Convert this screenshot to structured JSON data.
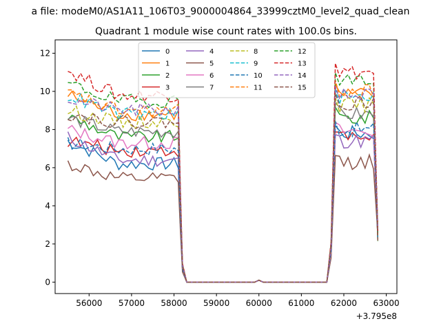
{
  "figure": {
    "suptitle": "a file: modeM0/AS1A11_106T03_9000004864_33999cztM0_level2_quad_clean"
  },
  "chart_data": {
    "type": "line",
    "title": "Quadrant 1 module wise count rates with 100.0s bins.",
    "xlabel": "",
    "ylabel": "",
    "x_offset_label": "+3.795e8",
    "x_offset": 379500000,
    "xlim": [
      55200,
      63250
    ],
    "ylim": [
      -0.6,
      12.7
    ],
    "xticks": [
      56000,
      57000,
      58000,
      59000,
      60000,
      61000,
      62000,
      63000
    ],
    "xtick_labels": [
      "56000",
      "57000",
      "58000",
      "59000",
      "60000",
      "61000",
      "62000",
      "63000"
    ],
    "yticks": [
      0,
      2,
      4,
      6,
      8,
      10,
      12
    ],
    "ytick_labels": [
      "0",
      "2",
      "4",
      "6",
      "8",
      "10",
      "12"
    ],
    "grid": false,
    "legend": {
      "placement": "top-center",
      "columns": 4
    },
    "series": [
      {
        "name": "0",
        "color": "#1f77b4",
        "style": "solid",
        "level1": 6.2,
        "level2": 7.8,
        "start": 7.4
      },
      {
        "name": "1",
        "color": "#ff7f0e",
        "style": "solid",
        "level1": 8.8,
        "level2": 9.8,
        "start": 9.8
      },
      {
        "name": "2",
        "color": "#2ca02c",
        "style": "solid",
        "level1": 7.6,
        "level2": 8.6,
        "start": 8.7
      },
      {
        "name": "3",
        "color": "#d62728",
        "style": "solid",
        "level1": 6.9,
        "level2": 7.6,
        "start": 7.4
      },
      {
        "name": "4",
        "color": "#9467bd",
        "style": "solid",
        "level1": 6.4,
        "level2": 7.4,
        "start": 7.6
      },
      {
        "name": "5",
        "color": "#8c564b",
        "style": "solid",
        "level1": 5.4,
        "level2": 6.3,
        "start": 6.2
      },
      {
        "name": "6",
        "color": "#e377c2",
        "style": "solid",
        "level1": 7.3,
        "level2": 7.9,
        "start": 8.0
      },
      {
        "name": "7",
        "color": "#7f7f7f",
        "style": "solid",
        "level1": 7.9,
        "level2": 8.8,
        "start": 8.6
      },
      {
        "name": "8",
        "color": "#bcbd22",
        "style": "dashed",
        "level1": 8.4,
        "level2": 9.3,
        "start": 9.0
      },
      {
        "name": "9",
        "color": "#17becf",
        "style": "dashed",
        "level1": 8.8,
        "level2": 9.7,
        "start": 9.8
      },
      {
        "name": "10",
        "color": "#1f77b4",
        "style": "dashed",
        "level1": 7.0,
        "level2": 8.0,
        "start": 7.3
      },
      {
        "name": "11",
        "color": "#ff7f0e",
        "style": "dashed",
        "level1": 9.0,
        "level2": 10.0,
        "start": 9.9
      },
      {
        "name": "12",
        "color": "#2ca02c",
        "style": "dashed",
        "level1": 9.5,
        "level2": 10.6,
        "start": 10.4
      },
      {
        "name": "13",
        "color": "#d62728",
        "style": "dashed",
        "level1": 9.8,
        "level2": 11.0,
        "start": 11.1
      },
      {
        "name": "14",
        "color": "#9467bd",
        "style": "dashed",
        "level1": 9.0,
        "level2": 9.8,
        "start": 9.6
      },
      {
        "name": "15",
        "color": "#8c564b",
        "style": "dashed",
        "level1": 8.4,
        "level2": 9.4,
        "start": 8.8
      }
    ],
    "profile": {
      "segment1": {
        "x_start": 55500,
        "x_end": 58100,
        "step": 100
      },
      "fall": [
        {
          "x": 58150,
          "frac": 0.5
        },
        {
          "x": 58200,
          "frac": 0.1
        },
        {
          "x": 58300,
          "value": 0
        }
      ],
      "gap_zero": {
        "x_start": 58300,
        "x_end": 61600,
        "step": 100,
        "bump": {
          "x": 60000,
          "value": 0.1
        }
      },
      "rise": [
        {
          "x": 61700,
          "frac": 0.2
        },
        {
          "x": 61800,
          "frac": 1.05
        }
      ],
      "segment2": {
        "x_start": 61900,
        "x_end": 62700,
        "step": 100
      },
      "end": {
        "x": 62800,
        "value": 2.5
      }
    }
  }
}
